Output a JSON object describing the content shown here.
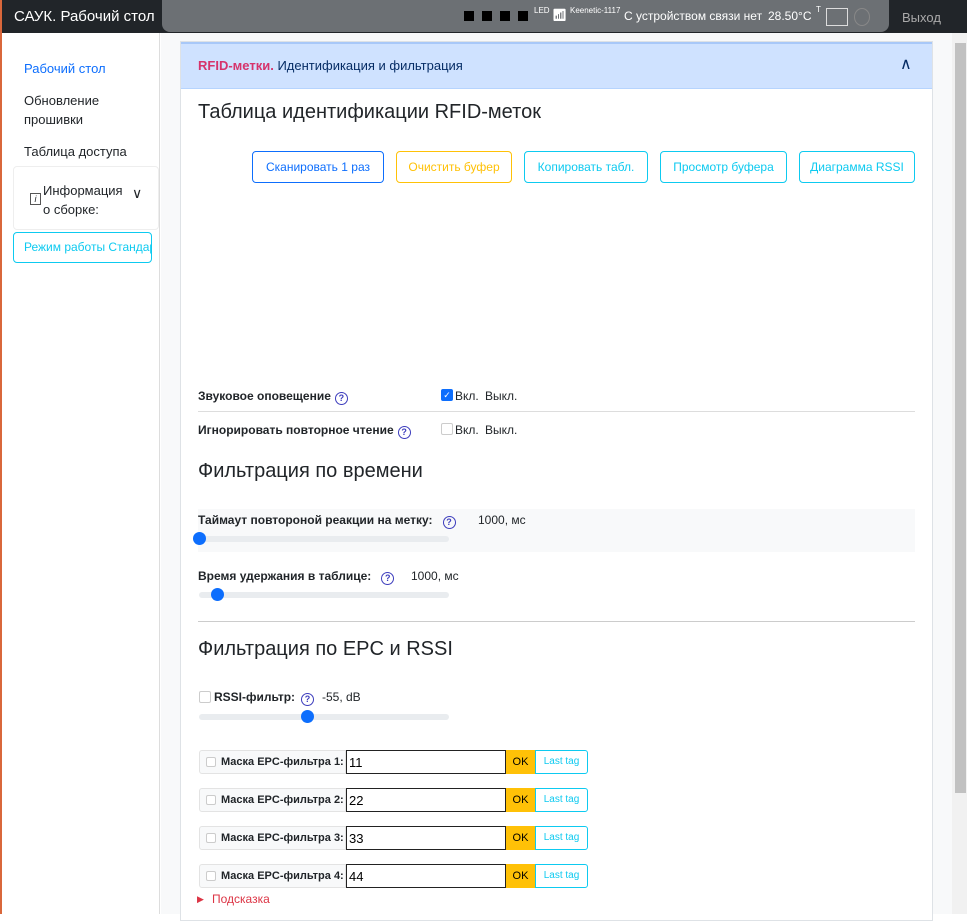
{
  "header": {
    "title": "САУК. Рабочий стол",
    "exit": "Выход",
    "status": {
      "led": "LED",
      "wifi": "Keenetic-1117",
      "connection": "С устройством связи нет",
      "temperature": "28.50°C",
      "temp_sup": "T"
    }
  },
  "sidebar": {
    "items": [
      {
        "label": "Рабочий стол",
        "active": true
      },
      {
        "label": "Обновление прошивки"
      },
      {
        "label": "Таблица доступа"
      }
    ],
    "info": "Информация о сборке:",
    "mode": "Режим работы Стандарт"
  },
  "card": {
    "header_accent": "RFID-метки.",
    "header_title": "Идентификация и фильтрация",
    "title": "Таблица идентификации RFID-меток",
    "buttons": [
      {
        "label": "Сканировать 1 раз",
        "color": "#0d6efd"
      },
      {
        "label": "Очистить буфер",
        "color": "#ffc107"
      },
      {
        "label": "Копировать табл.",
        "color": "#0dcaf0"
      },
      {
        "label": "Просмотр буфера",
        "color": "#0dcaf0"
      },
      {
        "label": "Диаграмма RSSI",
        "color": "#0dcaf0"
      }
    ],
    "sound": {
      "label": "Звуковое оповещение",
      "on": "Вкл.",
      "off": "Выкл.",
      "checked": true
    },
    "ignore": {
      "label": "Игнорировать повторное чтение",
      "on": "Вкл.",
      "off": "Выкл.",
      "checked": false
    },
    "time_title": "Фильтрация по времени",
    "timeout": {
      "label": "Таймаут повтороной реакции на метку:",
      "value": "1000, мс",
      "slider_fraction": 0.0
    },
    "hold": {
      "label": "Время удержания в таблице:",
      "value": "1000, мс",
      "slider_fraction": 0.07
    },
    "epc_title": "Фильтрация по EPC и RSSI",
    "rssi": {
      "label": "RSSI-фильтр:",
      "value": "-55, dB",
      "slider_fraction": 0.43,
      "checked": false
    },
    "masks": [
      {
        "label": "Маска EPC-фильтра 1:",
        "value": "11"
      },
      {
        "label": "Маска EPC-фильтра 2:",
        "value": "22"
      },
      {
        "label": "Маска EPC-фильтра 3:",
        "value": "33"
      },
      {
        "label": "Маска EPC-фильтра 4:",
        "value": "44"
      }
    ],
    "ok": "OK",
    "last_tag": "Last tag",
    "hint": "Подсказка"
  }
}
